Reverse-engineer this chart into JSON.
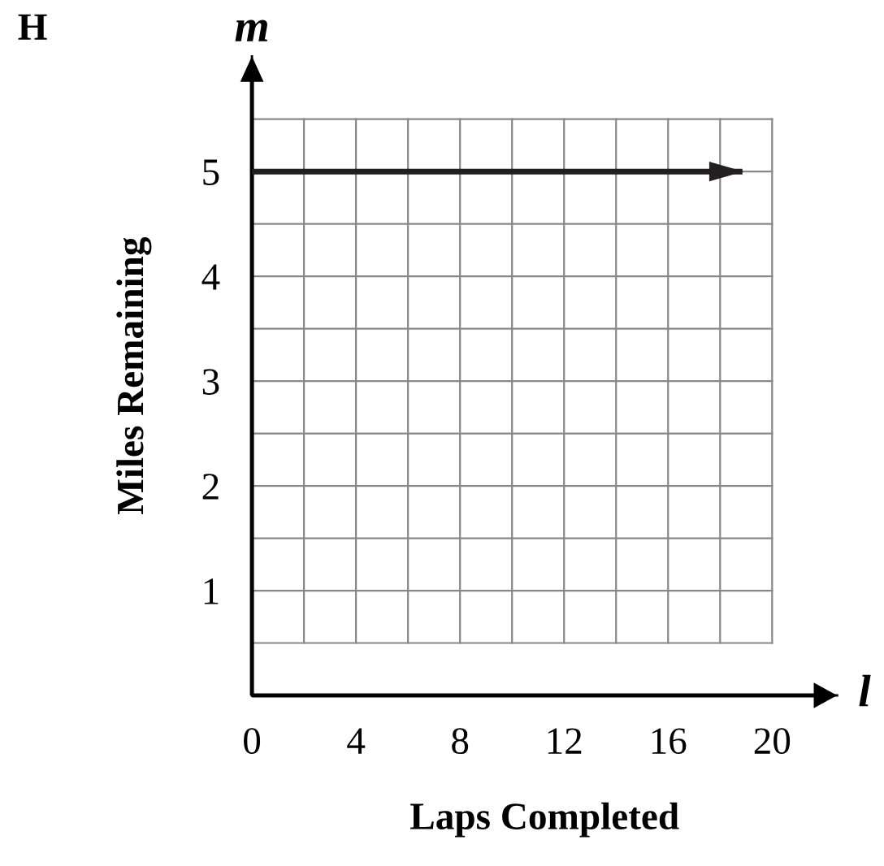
{
  "chart_data": {
    "type": "line",
    "xlabel": "Laps Completed",
    "ylabel": "Miles Remaining",
    "annotations": [
      "H",
      "m",
      "l"
    ],
    "series": [
      {
        "x": [
          0,
          18.75
        ],
        "values": [
          5,
          5
        ],
        "color": "#231f20"
      }
    ],
    "xlim": [
      0,
      22.5
    ],
    "ylim": [
      0,
      6.1
    ],
    "xticks": [
      0,
      {
        "value": 2,
        "label": null
      },
      4,
      {
        "value": 6,
        "label": null
      },
      8,
      {
        "value": 10,
        "label": null
      },
      12,
      {
        "value": 14,
        "label": null
      },
      16,
      {
        "value": 18,
        "label": null
      },
      20
    ],
    "yticks": [
      {
        "value": 0.5,
        "label": null
      },
      1,
      {
        "value": 1.5,
        "label": null
      },
      2,
      {
        "value": 2.5,
        "label": null
      },
      3,
      {
        "value": 3.5,
        "label": null
      },
      4,
      {
        "value": 4.5,
        "label": null
      },
      5,
      {
        "value": 5.5,
        "label": null
      }
    ],
    "grid": true,
    "marker": "none",
    "line_style": "solid"
  }
}
